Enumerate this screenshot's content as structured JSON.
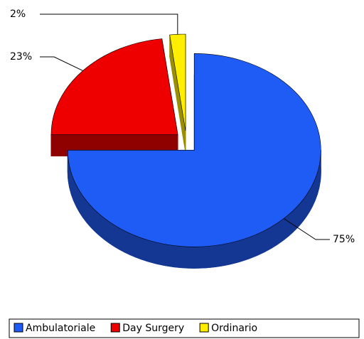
{
  "chart_data": {
    "type": "pie",
    "categories": [
      "Ambulatoriale",
      "Day Surgery",
      "Ordinario"
    ],
    "values": [
      75,
      23,
      2
    ],
    "value_labels": [
      "75%",
      "23%",
      "2%"
    ],
    "colors": [
      "#1f5cf5",
      "#ee0000",
      "#ffee00"
    ],
    "legend": "bottom"
  }
}
